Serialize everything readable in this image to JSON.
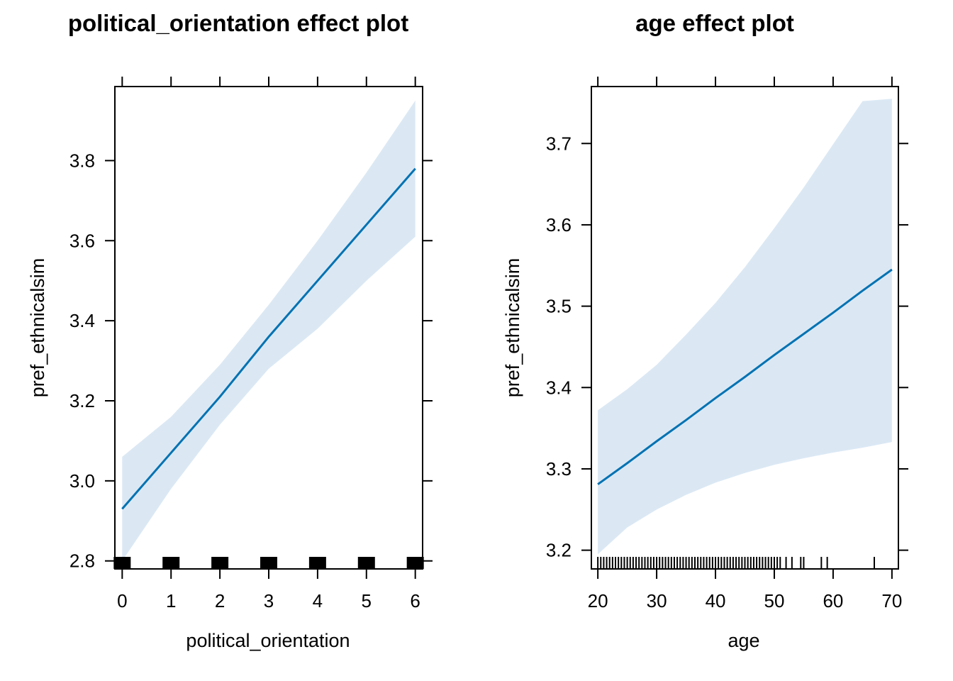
{
  "chart_data": [
    {
      "type": "line",
      "title": "political_orientation effect plot",
      "xlabel": "political_orientation",
      "ylabel": "pref_ethnicalsim",
      "xlim": [
        -0.15,
        6.15
      ],
      "ylim": [
        2.78,
        3.985
      ],
      "x_ticks": [
        0,
        1,
        2,
        3,
        4,
        5,
        6
      ],
      "y_ticks": [
        2.8,
        3.0,
        3.2,
        3.4,
        3.6,
        3.8
      ],
      "y_tick_labels": [
        "2.8",
        "3.0",
        "3.2",
        "3.4",
        "3.6",
        "3.8"
      ],
      "grid": false,
      "series": [
        {
          "x": [
            0,
            1,
            2,
            3,
            4,
            5,
            6
          ],
          "fit": [
            2.93,
            3.07,
            3.21,
            3.36,
            3.5,
            3.64,
            3.78
          ],
          "lower": [
            2.8,
            2.98,
            3.14,
            3.28,
            3.38,
            3.5,
            3.61
          ],
          "upper": [
            3.06,
            3.16,
            3.29,
            3.44,
            3.6,
            3.77,
            3.95
          ]
        }
      ],
      "rug": [
        0,
        1,
        2,
        3,
        4,
        5,
        6
      ],
      "rug_style": "block"
    },
    {
      "type": "line",
      "title": "age effect plot",
      "xlabel": "age",
      "ylabel": "pref_ethnicalsim",
      "xlim": [
        18.9,
        71.1
      ],
      "ylim": [
        3.177,
        3.77
      ],
      "x_ticks": [
        20,
        30,
        40,
        50,
        60,
        70
      ],
      "y_ticks": [
        3.2,
        3.3,
        3.4,
        3.5,
        3.6,
        3.7
      ],
      "y_tick_labels": [
        "3.2",
        "3.3",
        "3.4",
        "3.5",
        "3.6",
        "3.7"
      ],
      "grid": false,
      "series": [
        {
          "x": [
            20,
            25,
            30,
            35,
            40,
            45,
            50,
            55,
            60,
            65,
            70
          ],
          "fit": [
            3.281,
            3.307,
            3.334,
            3.36,
            3.387,
            3.413,
            3.44,
            3.466,
            3.492,
            3.519,
            3.545
          ],
          "lower": [
            3.195,
            3.228,
            3.25,
            3.268,
            3.283,
            3.295,
            3.305,
            3.313,
            3.32,
            3.326,
            3.333
          ],
          "upper": [
            3.372,
            3.398,
            3.428,
            3.465,
            3.504,
            3.548,
            3.596,
            3.646,
            3.699,
            3.752,
            3.755
          ]
        }
      ],
      "rug": [
        20,
        20.5,
        21,
        21.5,
        22,
        22.5,
        23,
        23.5,
        24,
        24.5,
        25,
        25.5,
        26,
        26.5,
        27,
        27.5,
        28,
        28.5,
        29,
        29.5,
        30,
        30.5,
        31,
        31.5,
        32,
        32.5,
        33,
        33.5,
        34,
        34.5,
        35,
        35.5,
        36,
        36.5,
        37,
        37.5,
        38,
        38.5,
        39,
        39.5,
        40,
        40.5,
        41,
        41.5,
        42,
        42.5,
        43,
        43.5,
        44,
        44.5,
        45,
        45.5,
        46,
        46.5,
        47,
        47.5,
        48,
        48.5,
        49,
        49.5,
        50,
        50.5,
        51,
        52,
        53,
        54.5,
        55,
        58,
        59,
        67
      ],
      "rug_style": "ticks"
    }
  ]
}
